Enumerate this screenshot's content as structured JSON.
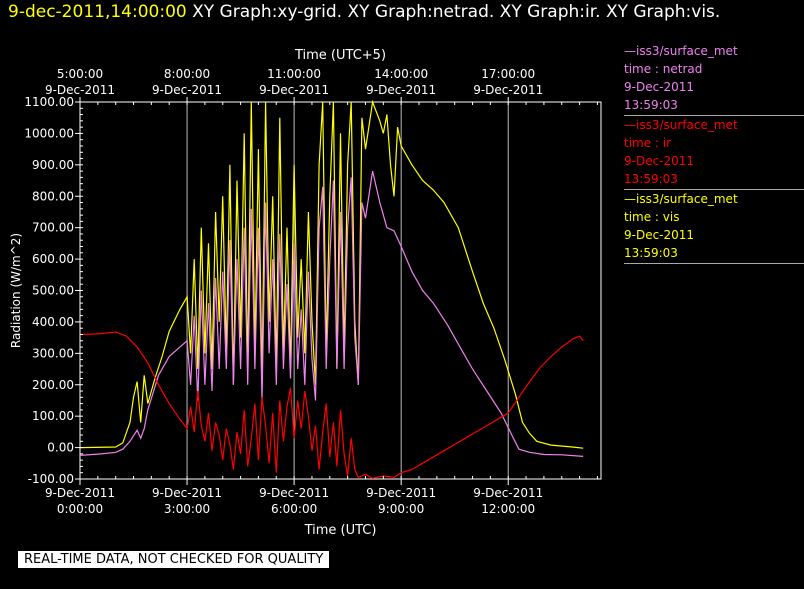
{
  "header": {
    "timestamp": "9-dec-2011,14:00:00",
    "graphs": "XY Graph:xy-grid.  XY Graph:netrad.  XY Graph:ir.  XY Graph:vis."
  },
  "legend": [
    {
      "source": "—iss3/surface_met",
      "var": "time : netrad",
      "date": "9-Dec-2011",
      "time": "13:59:03",
      "color": "#ee82ee"
    },
    {
      "source": "—iss3/surface_met",
      "var": "time : ir",
      "date": "9-Dec-2011",
      "time": "13:59:03",
      "color": "#ff0000"
    },
    {
      "source": "—iss3/surface_met",
      "var": "time : vis",
      "date": "9-Dec-2011",
      "time": "13:59:03",
      "color": "#ffff00"
    }
  ],
  "disclaimer": "REAL-TIME DATA, NOT CHECKED FOR QUALITY",
  "chart_data": {
    "type": "line",
    "xlabel": "Time (UTC)",
    "x2label": "Time (UTC+5)",
    "ylabel": "Radiation (W/m^2)",
    "xlim": [
      0,
      14.6
    ],
    "ylim": [
      -100,
      1100
    ],
    "grid": true,
    "legend_position": "right",
    "y_ticks": [
      "1100.00",
      "1000.00",
      "900.00",
      "800.00",
      "700.00",
      "600.00",
      "500.00",
      "400.00",
      "300.00",
      "200.00",
      "100.00",
      "0.00",
      "-100.00"
    ],
    "x_ticks": [
      {
        "date": "9-Dec-2011",
        "time": "0:00:00"
      },
      {
        "date": "9-Dec-2011",
        "time": "3:00:00"
      },
      {
        "date": "9-Dec-2011",
        "time": "6:00:00"
      },
      {
        "date": "9-Dec-2011",
        "time": "9:00:00"
      },
      {
        "date": "9-Dec-2011",
        "time": "12:00:00"
      }
    ],
    "x2_ticks": [
      {
        "time": "5:00:00",
        "date": "9-Dec-2011"
      },
      {
        "time": "8:00:00",
        "date": "9-Dec-2011"
      },
      {
        "time": "11:00:00",
        "date": "9-Dec-2011"
      },
      {
        "time": "14:00:00",
        "date": "9-Dec-2011"
      },
      {
        "time": "17:00:00",
        "date": "9-Dec-2011"
      }
    ],
    "series": [
      {
        "name": "time : vis",
        "color": "#ffff00",
        "points": [
          [
            0,
            0
          ],
          [
            1.0,
            2
          ],
          [
            1.2,
            15
          ],
          [
            1.4,
            80
          ],
          [
            1.5,
            160
          ],
          [
            1.6,
            210
          ],
          [
            1.7,
            80
          ],
          [
            1.8,
            230
          ],
          [
            1.9,
            140
          ],
          [
            2.0,
            180
          ],
          [
            2.1,
            220
          ],
          [
            2.3,
            290
          ],
          [
            2.5,
            370
          ],
          [
            2.8,
            440
          ],
          [
            3.0,
            480
          ],
          [
            3.1,
            300
          ],
          [
            3.2,
            600
          ],
          [
            3.3,
            250
          ],
          [
            3.4,
            700
          ],
          [
            3.5,
            300
          ],
          [
            3.6,
            650
          ],
          [
            3.7,
            250
          ],
          [
            3.8,
            750
          ],
          [
            3.9,
            400
          ],
          [
            4.0,
            800
          ],
          [
            4.1,
            300
          ],
          [
            4.2,
            900
          ],
          [
            4.3,
            200
          ],
          [
            4.4,
            850
          ],
          [
            4.5,
            350
          ],
          [
            4.6,
            1000
          ],
          [
            4.7,
            250
          ],
          [
            4.8,
            1100
          ],
          [
            4.9,
            300
          ],
          [
            5.0,
            950
          ],
          [
            5.1,
            200
          ],
          [
            5.2,
            1100
          ],
          [
            5.3,
            400
          ],
          [
            5.4,
            800
          ],
          [
            5.5,
            250
          ],
          [
            5.6,
            1050
          ],
          [
            5.7,
            300
          ],
          [
            5.8,
            700
          ],
          [
            5.9,
            250
          ],
          [
            6.0,
            900
          ],
          [
            6.1,
            350
          ],
          [
            6.2,
            600
          ],
          [
            6.3,
            300
          ],
          [
            6.4,
            750
          ],
          [
            6.5,
            400
          ],
          [
            6.6,
            200
          ],
          [
            6.7,
            900
          ],
          [
            6.8,
            1100
          ],
          [
            6.9,
            300
          ],
          [
            7.0,
            800
          ],
          [
            7.1,
            1100
          ],
          [
            7.2,
            250
          ],
          [
            7.3,
            1000
          ],
          [
            7.4,
            300
          ],
          [
            7.5,
            900
          ],
          [
            7.6,
            1100
          ],
          [
            7.7,
            400
          ],
          [
            7.8,
            200
          ],
          [
            7.9,
            1050
          ],
          [
            8.0,
            950
          ],
          [
            8.2,
            1100
          ],
          [
            8.4,
            1040
          ],
          [
            8.5,
            1000
          ],
          [
            8.6,
            1060
          ],
          [
            8.7,
            900
          ],
          [
            8.8,
            800
          ],
          [
            8.9,
            1020
          ],
          [
            9.0,
            960
          ],
          [
            9.3,
            900
          ],
          [
            9.6,
            850
          ],
          [
            9.9,
            820
          ],
          [
            10.2,
            780
          ],
          [
            10.6,
            700
          ],
          [
            11.0,
            560
          ],
          [
            11.3,
            460
          ],
          [
            11.6,
            380
          ],
          [
            11.9,
            280
          ],
          [
            12.2,
            170
          ],
          [
            12.4,
            80
          ],
          [
            12.6,
            45
          ],
          [
            12.8,
            20
          ],
          [
            13.2,
            8
          ],
          [
            13.8,
            2
          ],
          [
            14.1,
            -2
          ]
        ]
      },
      {
        "name": "time : netrad",
        "color": "#ee82ee",
        "points": [
          [
            0,
            -25
          ],
          [
            0.6,
            -20
          ],
          [
            1.0,
            -15
          ],
          [
            1.2,
            -5
          ],
          [
            1.4,
            20
          ],
          [
            1.6,
            55
          ],
          [
            1.7,
            30
          ],
          [
            1.8,
            60
          ],
          [
            1.9,
            120
          ],
          [
            2.2,
            230
          ],
          [
            2.5,
            290
          ],
          [
            2.8,
            320
          ],
          [
            3.0,
            340
          ],
          [
            3.1,
            200
          ],
          [
            3.2,
            420
          ],
          [
            3.3,
            150
          ],
          [
            3.4,
            500
          ],
          [
            3.5,
            200
          ],
          [
            3.6,
            460
          ],
          [
            3.7,
            180
          ],
          [
            3.8,
            540
          ],
          [
            3.9,
            250
          ],
          [
            4.0,
            560
          ],
          [
            4.1,
            250
          ],
          [
            4.2,
            660
          ],
          [
            4.3,
            200
          ],
          [
            4.4,
            600
          ],
          [
            4.5,
            250
          ],
          [
            4.6,
            700
          ],
          [
            4.7,
            200
          ],
          [
            4.8,
            760
          ],
          [
            4.9,
            250
          ],
          [
            5.0,
            700
          ],
          [
            5.1,
            150
          ],
          [
            5.2,
            780
          ],
          [
            5.3,
            300
          ],
          [
            5.4,
            600
          ],
          [
            5.5,
            200
          ],
          [
            5.6,
            680
          ],
          [
            5.7,
            250
          ],
          [
            5.8,
            520
          ],
          [
            5.9,
            220
          ],
          [
            6.0,
            650
          ],
          [
            6.1,
            250
          ],
          [
            6.2,
            440
          ],
          [
            6.3,
            200
          ],
          [
            6.4,
            560
          ],
          [
            6.5,
            280
          ],
          [
            6.6,
            150
          ],
          [
            6.7,
            700
          ],
          [
            6.8,
            830
          ],
          [
            6.9,
            250
          ],
          [
            7.0,
            600
          ],
          [
            7.1,
            850
          ],
          [
            7.2,
            250
          ],
          [
            7.3,
            750
          ],
          [
            7.4,
            250
          ],
          [
            7.5,
            700
          ],
          [
            7.6,
            860
          ],
          [
            7.7,
            350
          ],
          [
            7.8,
            200
          ],
          [
            7.9,
            780
          ],
          [
            8.0,
            730
          ],
          [
            8.2,
            880
          ],
          [
            8.4,
            780
          ],
          [
            8.6,
            700
          ],
          [
            8.8,
            690
          ],
          [
            9.0,
            640
          ],
          [
            9.3,
            560
          ],
          [
            9.6,
            500
          ],
          [
            9.9,
            460
          ],
          [
            10.3,
            390
          ],
          [
            10.7,
            310
          ],
          [
            11.0,
            250
          ],
          [
            11.4,
            180
          ],
          [
            11.8,
            110
          ],
          [
            12.1,
            40
          ],
          [
            12.3,
            -5
          ],
          [
            12.6,
            -15
          ],
          [
            13.0,
            -22
          ],
          [
            13.5,
            -23
          ],
          [
            14.1,
            -28
          ]
        ]
      },
      {
        "name": "time : ir",
        "color": "#ff0000",
        "points": [
          [
            0,
            360
          ],
          [
            0.5,
            362
          ],
          [
            1.0,
            368
          ],
          [
            1.3,
            355
          ],
          [
            1.6,
            320
          ],
          [
            1.9,
            270
          ],
          [
            2.2,
            200
          ],
          [
            2.5,
            140
          ],
          [
            2.8,
            90
          ],
          [
            3.0,
            60
          ],
          [
            3.1,
            130
          ],
          [
            3.2,
            50
          ],
          [
            3.3,
            180
          ],
          [
            3.4,
            70
          ],
          [
            3.5,
            20
          ],
          [
            3.6,
            110
          ],
          [
            3.7,
            -10
          ],
          [
            3.8,
            80
          ],
          [
            3.9,
            40
          ],
          [
            4.0,
            -40
          ],
          [
            4.1,
            60
          ],
          [
            4.2,
            10
          ],
          [
            4.3,
            -70
          ],
          [
            4.4,
            50
          ],
          [
            4.5,
            -20
          ],
          [
            4.6,
            120
          ],
          [
            4.7,
            -60
          ],
          [
            4.8,
            30
          ],
          [
            4.9,
            140
          ],
          [
            5.0,
            -40
          ],
          [
            5.1,
            160
          ],
          [
            5.2,
            70
          ],
          [
            5.3,
            -50
          ],
          [
            5.4,
            110
          ],
          [
            5.5,
            -80
          ],
          [
            5.6,
            150
          ],
          [
            5.7,
            20
          ],
          [
            5.8,
            130
          ],
          [
            5.9,
            190
          ],
          [
            6.0,
            30
          ],
          [
            6.1,
            150
          ],
          [
            6.2,
            60
          ],
          [
            6.3,
            180
          ],
          [
            6.4,
            100
          ],
          [
            6.5,
            -10
          ],
          [
            6.6,
            70
          ],
          [
            6.7,
            -70
          ],
          [
            6.8,
            50
          ],
          [
            6.9,
            140
          ],
          [
            7.0,
            -30
          ],
          [
            7.1,
            80
          ],
          [
            7.2,
            -60
          ],
          [
            7.3,
            120
          ],
          [
            7.4,
            -20
          ],
          [
            7.5,
            -90
          ],
          [
            7.6,
            30
          ],
          [
            7.7,
            -70
          ],
          [
            7.8,
            -95
          ],
          [
            8.0,
            -85
          ],
          [
            8.2,
            -98
          ],
          [
            8.5,
            -90
          ],
          [
            8.8,
            -95
          ],
          [
            9.0,
            -80
          ],
          [
            9.3,
            -70
          ],
          [
            9.6,
            -50
          ],
          [
            9.9,
            -30
          ],
          [
            10.2,
            -10
          ],
          [
            10.5,
            10
          ],
          [
            10.8,
            30
          ],
          [
            11.1,
            50
          ],
          [
            11.4,
            70
          ],
          [
            11.7,
            90
          ],
          [
            12.0,
            110
          ],
          [
            12.3,
            160
          ],
          [
            12.6,
            210
          ],
          [
            12.9,
            255
          ],
          [
            13.2,
            290
          ],
          [
            13.5,
            320
          ],
          [
            13.8,
            345
          ],
          [
            14.0,
            355
          ],
          [
            14.1,
            340
          ]
        ]
      }
    ]
  }
}
